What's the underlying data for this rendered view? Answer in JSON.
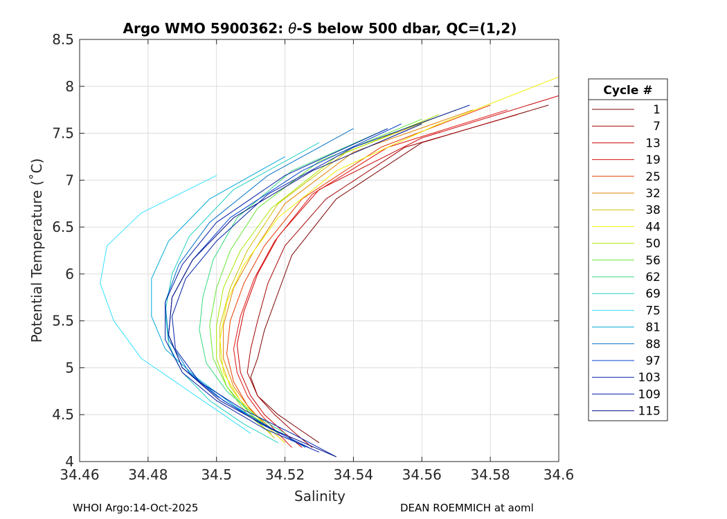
{
  "chart_data": {
    "type": "line",
    "title_prefix": "Argo WMO 5900362: ",
    "title_theta": "θ",
    "title_suffix": "-S below 500 dbar,  QC=(1,2)",
    "xlabel": "Salinity",
    "ylabel": "Potential Temperature (˚C)",
    "xlim": [
      34.46,
      34.6
    ],
    "ylim": [
      4,
      8.5
    ],
    "xticks": [
      34.46,
      34.48,
      34.5,
      34.52,
      34.54,
      34.56,
      34.58,
      34.6
    ],
    "xtick_labels": [
      "34.46",
      "34.48",
      "34.5",
      "34.52",
      "34.54",
      "34.56",
      "34.58",
      "34.6"
    ],
    "yticks": [
      4,
      4.5,
      5,
      5.5,
      6,
      6.5,
      7,
      7.5,
      8,
      8.5
    ],
    "ytick_labels": [
      "4",
      "4.5",
      "5",
      "5.5",
      "6",
      "6.5",
      "7",
      "7.5",
      "8",
      "8.5"
    ],
    "grid": true,
    "legend": {
      "title": "Cycle #",
      "placement": "outside-right",
      "entries": [
        "1",
        "7",
        "13",
        "19",
        "25",
        "32",
        "38",
        "44",
        "50",
        "56",
        "62",
        "69",
        "75",
        "81",
        "88",
        "97",
        "103",
        "109",
        "115"
      ],
      "colors": [
        "#7a0000",
        "#a30000",
        "#cc0000",
        "#e01010",
        "#e63c00",
        "#e08000",
        "#d0c000",
        "#f0f000",
        "#a8e800",
        "#66e633",
        "#33d980",
        "#20d0c0",
        "#30e0ff",
        "#00a8d8",
        "#0070c8",
        "#0040d0",
        "#0020a8",
        "#001aa0",
        "#000c80"
      ]
    },
    "series": [
      {
        "name": "1",
        "color": "#7a0000",
        "s": [
          34.597,
          34.56,
          34.535,
          34.522,
          34.518,
          34.514,
          34.512,
          34.51,
          34.512,
          34.518,
          34.524,
          34.53
        ],
        "t": [
          7.8,
          7.4,
          6.8,
          6.2,
          5.8,
          5.4,
          5.1,
          4.9,
          4.7,
          4.5,
          4.35,
          4.2
        ]
      },
      {
        "name": "7",
        "color": "#a30000",
        "s": [
          34.588,
          34.555,
          34.532,
          34.52,
          34.515,
          34.512,
          34.51,
          34.509,
          34.512,
          34.517,
          34.523,
          34.528
        ],
        "t": [
          7.7,
          7.35,
          6.8,
          6.3,
          5.9,
          5.5,
          5.2,
          4.95,
          4.7,
          4.5,
          4.3,
          4.15
        ]
      },
      {
        "name": "13",
        "color": "#cc0000",
        "s": [
          34.6,
          34.56,
          34.53,
          34.518,
          34.512,
          34.508,
          34.506,
          34.507,
          34.51,
          34.514,
          34.52,
          34.525
        ],
        "t": [
          7.9,
          7.45,
          6.9,
          6.4,
          6.0,
          5.6,
          5.25,
          4.95,
          4.7,
          4.5,
          4.3,
          4.15
        ]
      },
      {
        "name": "19",
        "color": "#e01010",
        "s": [
          34.585,
          34.55,
          34.528,
          34.517,
          34.511,
          34.507,
          34.505,
          34.506,
          34.509,
          34.513,
          34.518,
          34.522
        ],
        "t": [
          7.75,
          7.35,
          6.85,
          6.35,
          5.95,
          5.55,
          5.2,
          4.95,
          4.7,
          4.5,
          4.3,
          4.15
        ]
      },
      {
        "name": "25",
        "color": "#e63c00",
        "s": [
          34.58,
          34.548,
          34.525,
          34.514,
          34.508,
          34.504,
          34.503,
          34.505,
          34.509,
          34.514,
          34.52
        ],
        "t": [
          7.8,
          7.35,
          6.8,
          6.3,
          5.9,
          5.5,
          5.15,
          4.85,
          4.6,
          4.4,
          4.2
        ]
      },
      {
        "name": "32",
        "color": "#e08000",
        "s": [
          34.575,
          34.54,
          34.52,
          34.511,
          34.505,
          34.502,
          34.502,
          34.505,
          34.51,
          34.516
        ],
        "t": [
          7.75,
          7.3,
          6.75,
          6.25,
          5.85,
          5.45,
          5.1,
          4.8,
          4.55,
          4.35
        ]
      },
      {
        "name": "38",
        "color": "#d0c000",
        "s": [
          34.57,
          34.538,
          34.518,
          34.509,
          34.504,
          34.501,
          34.501,
          34.504,
          34.51,
          34.517
        ],
        "t": [
          7.75,
          7.3,
          6.75,
          6.25,
          5.85,
          5.45,
          5.1,
          4.8,
          4.5,
          4.25
        ]
      },
      {
        "name": "44",
        "color": "#f0f000",
        "s": [
          34.6,
          34.565,
          34.535,
          34.518,
          34.508,
          34.503,
          34.501,
          34.502,
          34.507,
          34.514,
          34.52
        ],
        "t": [
          8.1,
          7.6,
          7.1,
          6.6,
          6.1,
          5.7,
          5.3,
          4.95,
          4.65,
          4.4,
          4.2
        ]
      },
      {
        "name": "50",
        "color": "#a8e800",
        "s": [
          34.565,
          34.535,
          34.516,
          34.507,
          34.502,
          34.5,
          34.5,
          34.503,
          34.509,
          34.516
        ],
        "t": [
          7.7,
          7.25,
          6.7,
          6.25,
          5.85,
          5.45,
          5.1,
          4.8,
          4.5,
          4.3
        ]
      },
      {
        "name": "56",
        "color": "#66e633",
        "s": [
          34.56,
          34.53,
          34.512,
          34.504,
          34.5,
          34.498,
          34.499,
          34.503,
          34.51,
          34.518
        ],
        "t": [
          7.65,
          7.2,
          6.7,
          6.25,
          5.85,
          5.45,
          5.1,
          4.8,
          4.5,
          4.3
        ]
      },
      {
        "name": "62",
        "color": "#33d980",
        "s": [
          34.55,
          34.522,
          34.506,
          34.499,
          34.496,
          34.495,
          34.497,
          34.503,
          34.511,
          34.52
        ],
        "t": [
          7.55,
          7.1,
          6.6,
          6.15,
          5.75,
          5.4,
          5.05,
          4.75,
          4.5,
          4.3
        ]
      },
      {
        "name": "69",
        "color": "#20d0c0",
        "s": [
          34.53,
          34.505,
          34.492,
          34.487,
          34.485,
          34.486,
          34.49,
          34.498,
          34.508,
          34.518
        ],
        "t": [
          7.4,
          6.9,
          6.4,
          6.0,
          5.6,
          5.25,
          4.95,
          4.65,
          4.4,
          4.2
        ]
      },
      {
        "name": "75",
        "color": "#30e0ff",
        "s": [
          34.5,
          34.478,
          34.468,
          34.466,
          34.47,
          34.478,
          34.49,
          34.5,
          34.51
        ],
        "t": [
          7.05,
          6.65,
          6.3,
          5.9,
          5.5,
          5.1,
          4.8,
          4.55,
          4.3
        ]
      },
      {
        "name": "81",
        "color": "#00a8d8",
        "s": [
          34.52,
          34.498,
          34.486,
          34.481,
          34.481,
          34.485,
          34.494,
          34.505,
          34.516
        ],
        "t": [
          7.25,
          6.8,
          6.35,
          5.95,
          5.55,
          5.2,
          4.9,
          4.6,
          4.35
        ]
      },
      {
        "name": "88",
        "color": "#0070c8",
        "s": [
          34.54,
          34.515,
          34.498,
          34.489,
          34.485,
          34.486,
          34.492,
          34.502,
          34.514,
          34.526
        ],
        "t": [
          7.55,
          7.05,
          6.55,
          6.1,
          5.7,
          5.3,
          4.95,
          4.65,
          4.4,
          4.15
        ]
      },
      {
        "name": "97",
        "color": "#0040d0",
        "s": [
          34.554,
          34.525,
          34.504,
          34.493,
          34.487,
          34.486,
          34.49,
          34.5,
          34.513,
          34.527
        ],
        "t": [
          7.6,
          7.1,
          6.6,
          6.15,
          5.75,
          5.35,
          5.0,
          4.7,
          4.4,
          4.15
        ]
      },
      {
        "name": "103",
        "color": "#0020a8",
        "s": [
          34.574,
          34.54,
          34.515,
          34.5,
          34.491,
          34.487,
          34.488,
          34.495,
          34.508,
          34.522,
          34.535
        ],
        "t": [
          7.8,
          7.35,
          6.85,
          6.35,
          5.95,
          5.55,
          5.2,
          4.85,
          4.55,
          4.3,
          4.05
        ]
      },
      {
        "name": "109",
        "color": "#001aa0",
        "s": [
          34.55,
          34.52,
          34.5,
          34.49,
          34.485,
          34.485,
          34.49,
          34.5,
          34.514,
          34.53
        ],
        "t": [
          7.55,
          7.05,
          6.55,
          6.1,
          5.7,
          5.3,
          4.95,
          4.65,
          4.35,
          4.1
        ]
      },
      {
        "name": "115",
        "color": "#000c80",
        "s": [
          34.56,
          34.528,
          34.505,
          34.493,
          34.487,
          34.486,
          34.49,
          34.501,
          34.516,
          34.535
        ],
        "t": [
          7.6,
          7.1,
          6.6,
          6.15,
          5.75,
          5.35,
          5.0,
          4.65,
          4.35,
          4.05
        ]
      }
    ]
  },
  "footer": {
    "left": "WHOI Argo:14-Oct-2025",
    "right": "DEAN ROEMMICH at aoml"
  }
}
